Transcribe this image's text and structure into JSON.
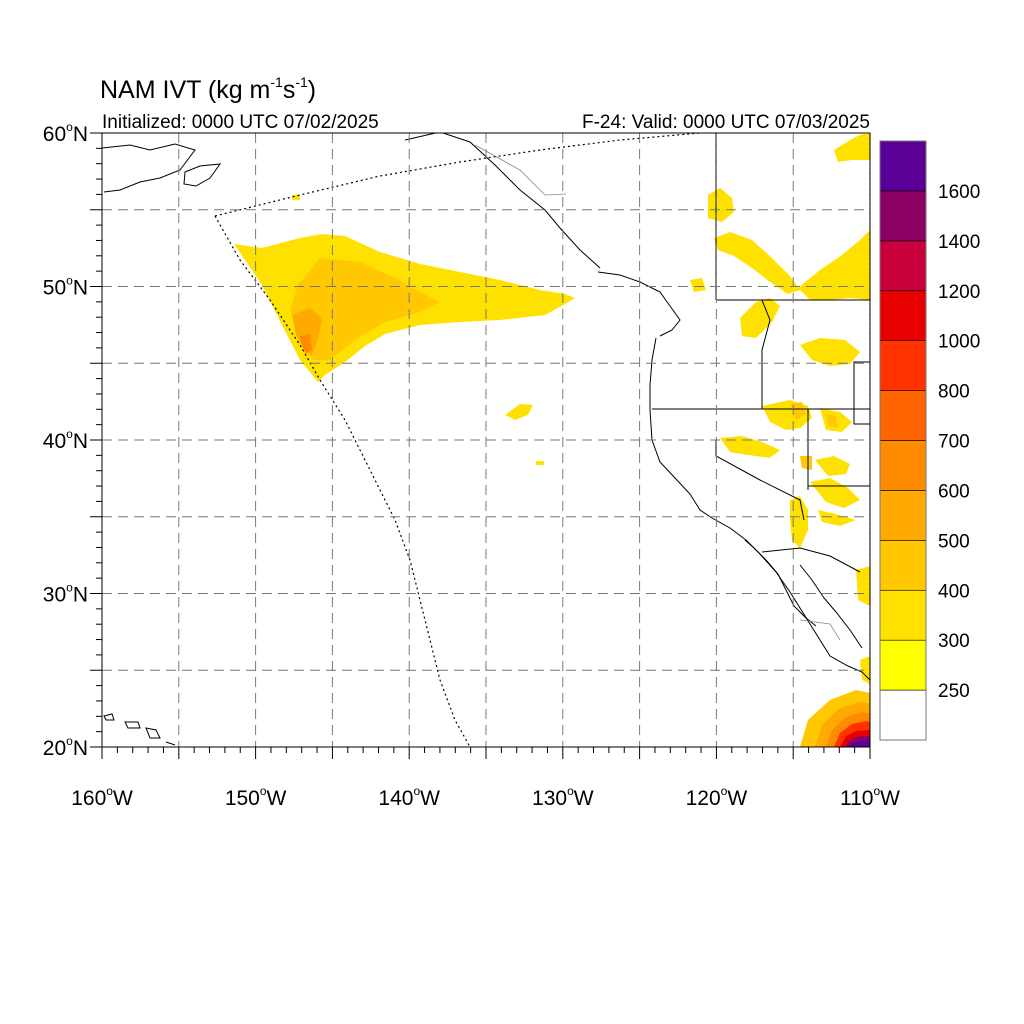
{
  "title": {
    "main": "NAM IVT (kg m",
    "sup1": "-1",
    "mid": "s",
    "sup2": "-1",
    "end": ")"
  },
  "subtitle_left": "Initialized: 0000 UTC 07/02/2025",
  "subtitle_right": "F-24: Valid: 0000 UTC 07/03/2025",
  "axes": {
    "lon_range": [
      -160,
      -110
    ],
    "lat_range": [
      20,
      60
    ],
    "lat_labels": [
      {
        "deg": "60",
        "hemi": "N",
        "value": 60
      },
      {
        "deg": "50",
        "hemi": "N",
        "value": 50
      },
      {
        "deg": "40",
        "hemi": "N",
        "value": 40
      },
      {
        "deg": "30",
        "hemi": "N",
        "value": 30
      },
      {
        "deg": "20",
        "hemi": "N",
        "value": 20
      }
    ],
    "lon_labels": [
      {
        "deg": "160",
        "hemi": "W",
        "value": -160
      },
      {
        "deg": "150",
        "hemi": "W",
        "value": -150
      },
      {
        "deg": "140",
        "hemi": "W",
        "value": -140
      },
      {
        "deg": "130",
        "hemi": "W",
        "value": -130
      },
      {
        "deg": "120",
        "hemi": "W",
        "value": -120
      },
      {
        "deg": "110",
        "hemi": "W",
        "value": -110
      }
    ],
    "grid_dashed": true,
    "grid_lon_step": 5,
    "grid_lat_step": 5
  },
  "colorbar": {
    "colors": [
      "#ffffff",
      "#ffff00",
      "#ffe100",
      "#ffc800",
      "#ffaa00",
      "#ff8c00",
      "#ff6400",
      "#ff3200",
      "#e60000",
      "#c8003c",
      "#8c0064",
      "#5a0096"
    ],
    "labels": [
      "250",
      "300",
      "400",
      "500",
      "600",
      "700",
      "800",
      "1000",
      "1200",
      "1400",
      "1600"
    ]
  },
  "chart_data": {
    "type": "heatmap",
    "title": "NAM IVT (kg m-1s-1)",
    "variable": "IVT",
    "units": "kg m-1s-1",
    "levels": [
      250,
      300,
      400,
      500,
      600,
      700,
      800,
      1000,
      1200,
      1400,
      1600
    ],
    "xlim": [
      -160,
      -110
    ],
    "ylim": [
      20,
      60
    ],
    "features": [
      {
        "region": "Northeast Pacific plume",
        "lon_range": [
          -153,
          -129
        ],
        "lat_range": [
          44,
          53.5
        ],
        "max_ivt_range": [
          500,
          600
        ],
        "max_location": [
          -147,
          46.5
        ]
      },
      {
        "region": "Pacific off Mexico",
        "lon_range": [
          -115,
          -110
        ],
        "lat_range": [
          20,
          24
        ],
        "max_ivt_range": [
          1600,
          1800
        ],
        "max_location": [
          -110.5,
          20.5
        ]
      },
      {
        "region": "Interior West scattered",
        "lon_range": [
          -120,
          -110
        ],
        "lat_range": [
          33,
          57
        ],
        "max_ivt_range": [
          300,
          400
        ]
      }
    ]
  }
}
